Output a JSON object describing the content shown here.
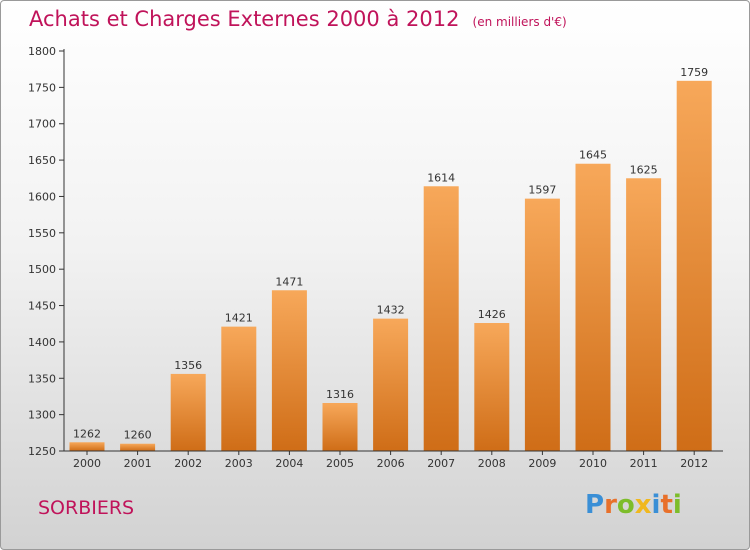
{
  "title": "Achats et Charges Externes 2000 à 2012",
  "unit": "(en milliers d'€)",
  "city": "SORBIERS",
  "logo": {
    "letters": [
      "P",
      "r",
      "o",
      "x",
      "i",
      "t",
      "i"
    ],
    "colors": [
      "#3a8fd6",
      "#e8702a",
      "#7dbd2a",
      "#f0b81e",
      "#3a8fd6",
      "#e8702a",
      "#7dbd2a"
    ]
  },
  "colors": {
    "title": "#c0135a",
    "bar_light": "#f7a85a",
    "bar_dark": "#cf6d17",
    "axis": "#333333"
  },
  "chart_data": {
    "type": "bar",
    "title": "Achats et Charges Externes 2000 à 2012",
    "categories": [
      "2000",
      "2001",
      "2002",
      "2003",
      "2004",
      "2005",
      "2006",
      "2007",
      "2008",
      "2009",
      "2010",
      "2011",
      "2012"
    ],
    "values": [
      1262,
      1260,
      1356,
      1421,
      1471,
      1316,
      1432,
      1614,
      1426,
      1597,
      1645,
      1625,
      1759
    ],
    "ylim": [
      1250,
      1800
    ],
    "yticks": [
      1250,
      1300,
      1350,
      1400,
      1450,
      1500,
      1550,
      1600,
      1650,
      1700,
      1750,
      1800
    ],
    "grid": false
  }
}
